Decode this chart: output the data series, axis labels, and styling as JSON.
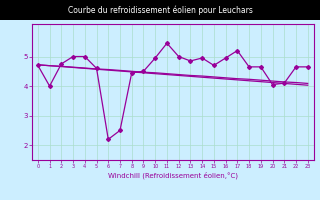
{
  "title": "Courbe du refroidissement éolien pour Leuchars",
  "xlabel": "Windchill (Refroidissement éolien,°C)",
  "bg_color": "#cceeff",
  "line_color": "#990099",
  "title_bg": "#000000",
  "title_fg": "#ffffff",
  "grid_color": "#aaddcc",
  "xlim": [
    -0.5,
    23.5
  ],
  "ylim": [
    1.5,
    6.1
  ],
  "yticks": [
    2,
    3,
    4,
    5
  ],
  "xticks": [
    0,
    1,
    2,
    3,
    4,
    5,
    6,
    7,
    8,
    9,
    10,
    11,
    12,
    13,
    14,
    15,
    16,
    17,
    18,
    19,
    20,
    21,
    22,
    23
  ],
  "x": [
    0,
    1,
    2,
    3,
    4,
    5,
    6,
    7,
    8,
    9,
    10,
    11,
    12,
    13,
    14,
    15,
    16,
    17,
    18,
    19,
    20,
    21,
    22,
    23
  ],
  "y_main": [
    4.7,
    4.0,
    4.75,
    5.0,
    5.0,
    4.6,
    2.2,
    2.5,
    4.45,
    4.5,
    4.95,
    5.45,
    5.0,
    4.85,
    4.95,
    4.7,
    4.95,
    5.2,
    4.65,
    4.65,
    4.05,
    4.1,
    4.65,
    4.65
  ],
  "y_trend1": [
    4.72,
    4.69,
    4.66,
    4.63,
    4.6,
    4.57,
    4.54,
    4.51,
    4.48,
    4.45,
    4.42,
    4.39,
    4.36,
    4.33,
    4.3,
    4.27,
    4.24,
    4.21,
    4.18,
    4.15,
    4.12,
    4.09,
    4.06,
    4.03
  ],
  "y_trend2": [
    4.72,
    4.69,
    4.67,
    4.64,
    4.61,
    4.58,
    4.56,
    4.53,
    4.5,
    4.47,
    4.45,
    4.42,
    4.39,
    4.36,
    4.34,
    4.31,
    4.28,
    4.25,
    4.23,
    4.2,
    4.17,
    4.14,
    4.12,
    4.09
  ]
}
